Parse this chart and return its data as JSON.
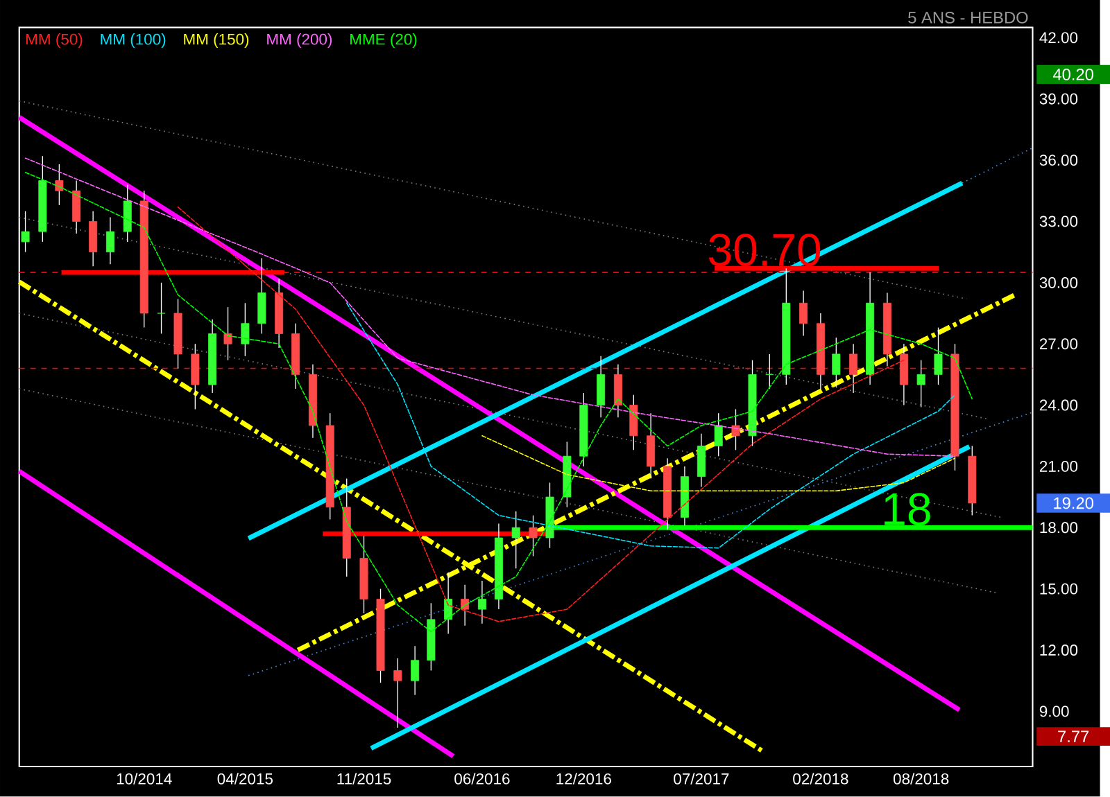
{
  "chart_data": {
    "type": "candlestick",
    "subtitle": "5 ANS - HEBDO",
    "x": [
      "2014-03",
      "2014-04",
      "2014-05",
      "2014-06",
      "2014-07",
      "2014-08",
      "2014-09",
      "2014-10",
      "2014-11",
      "2014-12",
      "2015-01",
      "2015-02",
      "2015-03",
      "2015-04",
      "2015-05",
      "2015-06",
      "2015-07",
      "2015-08",
      "2015-09",
      "2015-10",
      "2015-11",
      "2015-12",
      "2016-01",
      "2016-02",
      "2016-03",
      "2016-04",
      "2016-05",
      "2016-06",
      "2016-07",
      "2016-08",
      "2016-09",
      "2016-10",
      "2016-11",
      "2016-12",
      "2017-01",
      "2017-02",
      "2017-03",
      "2017-04",
      "2017-05",
      "2017-06",
      "2017-07",
      "2017-08",
      "2017-09",
      "2017-10",
      "2017-11",
      "2017-12",
      "2018-01",
      "2018-02",
      "2018-03",
      "2018-04",
      "2018-05",
      "2018-06",
      "2018-07",
      "2018-08",
      "2018-09",
      "2018-10",
      "2018-11"
    ],
    "ohlc": [
      [
        32,
        33.5,
        31.5,
        32.5
      ],
      [
        32.5,
        36.2,
        32,
        35
      ],
      [
        35,
        35.8,
        33.8,
        34.5
      ],
      [
        34.5,
        35,
        32.4,
        33
      ],
      [
        33,
        33.5,
        30.8,
        31.5
      ],
      [
        31.5,
        33.2,
        30.9,
        32.5
      ],
      [
        32.5,
        34.8,
        32,
        34
      ],
      [
        34,
        34.5,
        27.8,
        28.5
      ],
      [
        28.5,
        30,
        27.5,
        28.5
      ],
      [
        28.5,
        29.2,
        25.8,
        26.5
      ],
      [
        26.5,
        27,
        23.8,
        25
      ],
      [
        25,
        28.2,
        24.6,
        27.5
      ],
      [
        27.5,
        28.8,
        26.2,
        27
      ],
      [
        27,
        29,
        26.4,
        28
      ],
      [
        28,
        31.2,
        27.5,
        29.5
      ],
      [
        29.5,
        30.2,
        26.8,
        27.5
      ],
      [
        27.5,
        28,
        24.8,
        25.5
      ],
      [
        25.5,
        26,
        22.4,
        23
      ],
      [
        23,
        23.6,
        18.4,
        19
      ],
      [
        19,
        20.4,
        15.6,
        16.5
      ],
      [
        16.5,
        17.6,
        13.8,
        14.5
      ],
      [
        14.5,
        15,
        10.4,
        11
      ],
      [
        11,
        11.6,
        8.2,
        10.5
      ],
      [
        10.5,
        12.2,
        9.8,
        11.5
      ],
      [
        11.5,
        14.3,
        11,
        13.5
      ],
      [
        13.5,
        15.8,
        12.8,
        14.5
      ],
      [
        14.5,
        15.2,
        13.2,
        14
      ],
      [
        14,
        15.4,
        13.3,
        14.5
      ],
      [
        14.5,
        18.2,
        14,
        17.5
      ],
      [
        17.5,
        18.8,
        16,
        18
      ],
      [
        18,
        18.6,
        16.6,
        17.5
      ],
      [
        17.5,
        20.2,
        17,
        19.5
      ],
      [
        19.5,
        22.2,
        19,
        21.5
      ],
      [
        21.5,
        24.6,
        21,
        24
      ],
      [
        24,
        26.4,
        23.4,
        25.5
      ],
      [
        25.5,
        26,
        23.4,
        24
      ],
      [
        24,
        24.5,
        21.8,
        22.5
      ],
      [
        22.5,
        23.6,
        20.4,
        21
      ],
      [
        21,
        21.4,
        17.9,
        18.5
      ],
      [
        18.5,
        21,
        18.1,
        20.5
      ],
      [
        20.5,
        22.6,
        20,
        22
      ],
      [
        22,
        23.6,
        21.5,
        23
      ],
      [
        23,
        23.8,
        21.8,
        22.5
      ],
      [
        22.5,
        26.2,
        22,
        25.5
      ],
      [
        25.5,
        26.5,
        24.8,
        25.5
      ],
      [
        25.5,
        30.7,
        25,
        29
      ],
      [
        29,
        29.6,
        27.4,
        28
      ],
      [
        28,
        28.5,
        24.8,
        25.5
      ],
      [
        25.5,
        27.3,
        24.9,
        26.5
      ],
      [
        26.5,
        27,
        24.6,
        25.5
      ],
      [
        25.5,
        30.5,
        25,
        29
      ],
      [
        29,
        29.5,
        25.9,
        26.5
      ],
      [
        26.5,
        27,
        24,
        25
      ],
      [
        25,
        26.2,
        23.9,
        25.5
      ],
      [
        25.5,
        27.8,
        25,
        26.5
      ],
      [
        26.5,
        27,
        20.8,
        21.5
      ],
      [
        21.5,
        22,
        18.6,
        19.2
      ]
    ],
    "series": [
      {
        "type": "line",
        "name": "MM (50)",
        "color": "#ff2020",
        "line_style": "dashed",
        "x": [
          "2014-12",
          "2015-07",
          "2015-11",
          "2015-12",
          "2016-04",
          "2016-07",
          "2016-11",
          "2017-10",
          "2018-02",
          "2018-07"
        ],
        "values": [
          33.7,
          28.7,
          24.0,
          22.1,
          14.2,
          13.4,
          14.0,
          22.1,
          24.3,
          26.2
        ]
      },
      {
        "type": "line",
        "name": "MM (100)",
        "color": "#00e5ff",
        "line_style": "dashed",
        "x": [
          "2015-10",
          "2016-01",
          "2016-03",
          "2016-07",
          "2017-04",
          "2017-08",
          "2017-11",
          "2018-04",
          "2018-09",
          "2018-10"
        ],
        "values": [
          29.0,
          25.0,
          21.0,
          18.6,
          17.1,
          17.0,
          18.9,
          21.6,
          23.7,
          24.5
        ]
      },
      {
        "type": "line",
        "name": "MM (150)",
        "color": "#ffff00",
        "line_style": "dashed",
        "x": [
          "2016-06",
          "2016-11",
          "2017-04",
          "2017-10",
          "2018-03",
          "2018-07",
          "2018-10"
        ],
        "values": [
          22.5,
          20.6,
          19.8,
          19.8,
          19.8,
          20.2,
          21.4
        ]
      },
      {
        "type": "line",
        "name": "MM (200)",
        "color": "#ff66ff",
        "line_style": "dashed",
        "x": [
          "2014-03",
          "2014-08",
          "2015-05",
          "2015-09",
          "2016-01",
          "2016-09",
          "2017-04",
          "2017-11",
          "2018-06",
          "2018-10"
        ],
        "values": [
          36.1,
          34.4,
          31.4,
          30.0,
          26.3,
          24.5,
          23.5,
          22.6,
          21.6,
          21.5
        ]
      },
      {
        "type": "line",
        "name": "MME (20)",
        "color": "#00ff00",
        "line_style": "dashed",
        "x": [
          "2014-03",
          "2014-05",
          "2014-10",
          "2014-12",
          "2015-03",
          "2015-06",
          "2015-08",
          "2015-10",
          "2016-01",
          "2016-03",
          "2016-05",
          "2016-08",
          "2016-10",
          "2017-01",
          "2017-02",
          "2017-05",
          "2017-07",
          "2017-10",
          "2017-12",
          "2018-03",
          "2018-05",
          "2018-08",
          "2018-10",
          "2018-11"
        ],
        "values": [
          35.4,
          34.7,
          32.7,
          29.4,
          27.4,
          27.0,
          23.7,
          18.3,
          14.2,
          12.9,
          14.2,
          15.6,
          18.3,
          23.0,
          24.3,
          22.0,
          23.0,
          23.7,
          26.0,
          27.0,
          27.7,
          27.0,
          26.3,
          24.3
        ]
      },
      {
        "type": "line",
        "color": "#808080",
        "line_style": "dotted",
        "x": [
          "2014-02-18",
          "2018-10-22"
        ],
        "values": [
          38.9,
          29.2
        ]
      },
      {
        "type": "line",
        "color": "#808080",
        "line_style": "dotted",
        "x": [
          "2014-02-18",
          "2018-12-03"
        ],
        "values": [
          33.2,
          23.3
        ]
      },
      {
        "type": "line",
        "color": "#808080",
        "line_style": "dotted",
        "x": [
          "2014-02-18",
          "2018-12-23"
        ],
        "values": [
          28.5,
          18.5
        ]
      },
      {
        "type": "line",
        "color": "#808080",
        "line_style": "dotted",
        "x": [
          "2014-02-18",
          "2018-12-15"
        ],
        "values": [
          24.8,
          14.8
        ]
      },
      {
        "type": "line",
        "color": "#4a90e2",
        "line_style": "dotted",
        "x": [
          "2018-10-14",
          "2019-02-18"
        ],
        "values": [
          34.88,
          36.6
        ]
      },
      {
        "type": "line",
        "color": "#4a90e2",
        "line_style": "dotted",
        "x": [
          "2015-04-07",
          "2019-02-18"
        ],
        "values": [
          10.75,
          23.65
        ]
      },
      {
        "type": "line",
        "color": "#ff00ff",
        "line_style": "solid",
        "x": [
          "2014-02-18",
          "2018-10-09"
        ],
        "values": [
          38.1,
          9.07
        ]
      },
      {
        "type": "line",
        "color": "#ff00ff",
        "line_style": "solid",
        "x": [
          "2014-02-18",
          "2016-04-10"
        ],
        "values": [
          20.76,
          6.8
        ]
      },
      {
        "type": "line",
        "color": "#ffff00",
        "line_style": "dashed",
        "x": [
          "2014-02-18",
          "2017-10-23"
        ],
        "values": [
          30.04,
          6.99
        ]
      },
      {
        "type": "line",
        "color": "#ffff00",
        "line_style": "dashed",
        "x": [
          "2015-07-05",
          "2019-01-17"
        ],
        "values": [
          12.0,
          29.4
        ]
      },
      {
        "type": "line",
        "color": "#00e5ff",
        "line_style": "solid",
        "x": [
          "2015-04-07",
          "2018-10-14"
        ],
        "values": [
          17.47,
          34.88
        ]
      },
      {
        "type": "line",
        "color": "#00e5ff",
        "line_style": "solid",
        "x": [
          "2015-11-14",
          "2018-10-27"
        ],
        "values": [
          7.19,
          21.97
        ]
      },
      {
        "type": "line",
        "color": "#ff0000",
        "line_style": "solid",
        "x": [
          "2014-05-05",
          "2015-06-11"
        ],
        "values": [
          30.5,
          30.5
        ]
      },
      {
        "type": "line",
        "color": "#ff0000",
        "line_style": "solid",
        "x": [
          "2017-07-25",
          "2018-09-02"
        ],
        "values": [
          30.7,
          30.7
        ]
      },
      {
        "type": "line",
        "color": "#ff0000",
        "line_style": "solid",
        "x": [
          "2015-08-19",
          "2016-10-01"
        ],
        "values": [
          17.7,
          17.7
        ]
      },
      {
        "type": "line",
        "color": "#00ff00",
        "line_style": "solid",
        "x": [
          "2016-10-01",
          "2019-02-18"
        ],
        "values": [
          18,
          18
        ]
      }
    ],
    "ref_lines": [
      {
        "axis": "y",
        "value": 30.5,
        "color": "#ff0000",
        "line_style": "dashed"
      },
      {
        "axis": "y",
        "value": 25.8,
        "color": "#ff0000",
        "line_style": "dashed"
      }
    ],
    "annotations": [
      {
        "text": "30.70",
        "x": "2017-10-23",
        "y": 30.7
      },
      {
        "text": "18",
        "x": "2018-07-06",
        "y": 18
      }
    ],
    "y2lim": [
      6.3,
      42.5
    ],
    "y2ticks": [
      {
        "value": 40.2,
        "label": "40.20"
      },
      {
        "value": 19.2,
        "label": "19.20"
      },
      {
        "value": 7.77,
        "label": "7.77"
      }
    ],
    "xlim": [
      "2014-02-18",
      "2019-02-18"
    ],
    "xticks": [
      {
        "value": "2014-10-01",
        "label": "10/2014"
      },
      {
        "value": "2015-04-01",
        "label": "04/2015"
      },
      {
        "value": "2015-11-01",
        "label": "11/2015"
      },
      {
        "value": "2016-06-01",
        "label": "06/2016"
      },
      {
        "value": "2016-12-01",
        "label": "12/2016"
      },
      {
        "value": "2017-07-01",
        "label": "07/2017"
      },
      {
        "value": "2018-02-01",
        "label": "02/2018"
      },
      {
        "value": "2018-08-01",
        "label": "08/2018"
      }
    ],
    "ylim": [
      6.3,
      42.5
    ],
    "yticks": [
      {
        "value": 9,
        "label": "9.00"
      },
      {
        "value": 12,
        "label": "12.00"
      },
      {
        "value": 15,
        "label": "15.00"
      },
      {
        "value": 18,
        "label": "18.00"
      },
      {
        "value": 21,
        "label": "21.00"
      },
      {
        "value": 24,
        "label": "24.00"
      },
      {
        "value": 27,
        "label": "27.00"
      },
      {
        "value": 30,
        "label": "30.00"
      },
      {
        "value": 33,
        "label": "33.00"
      },
      {
        "value": 36,
        "label": "36.00"
      },
      {
        "value": 39,
        "label": "39.00"
      },
      {
        "value": 42,
        "label": "42.00"
      }
    ],
    "legend": "top left",
    "marker": "none"
  }
}
